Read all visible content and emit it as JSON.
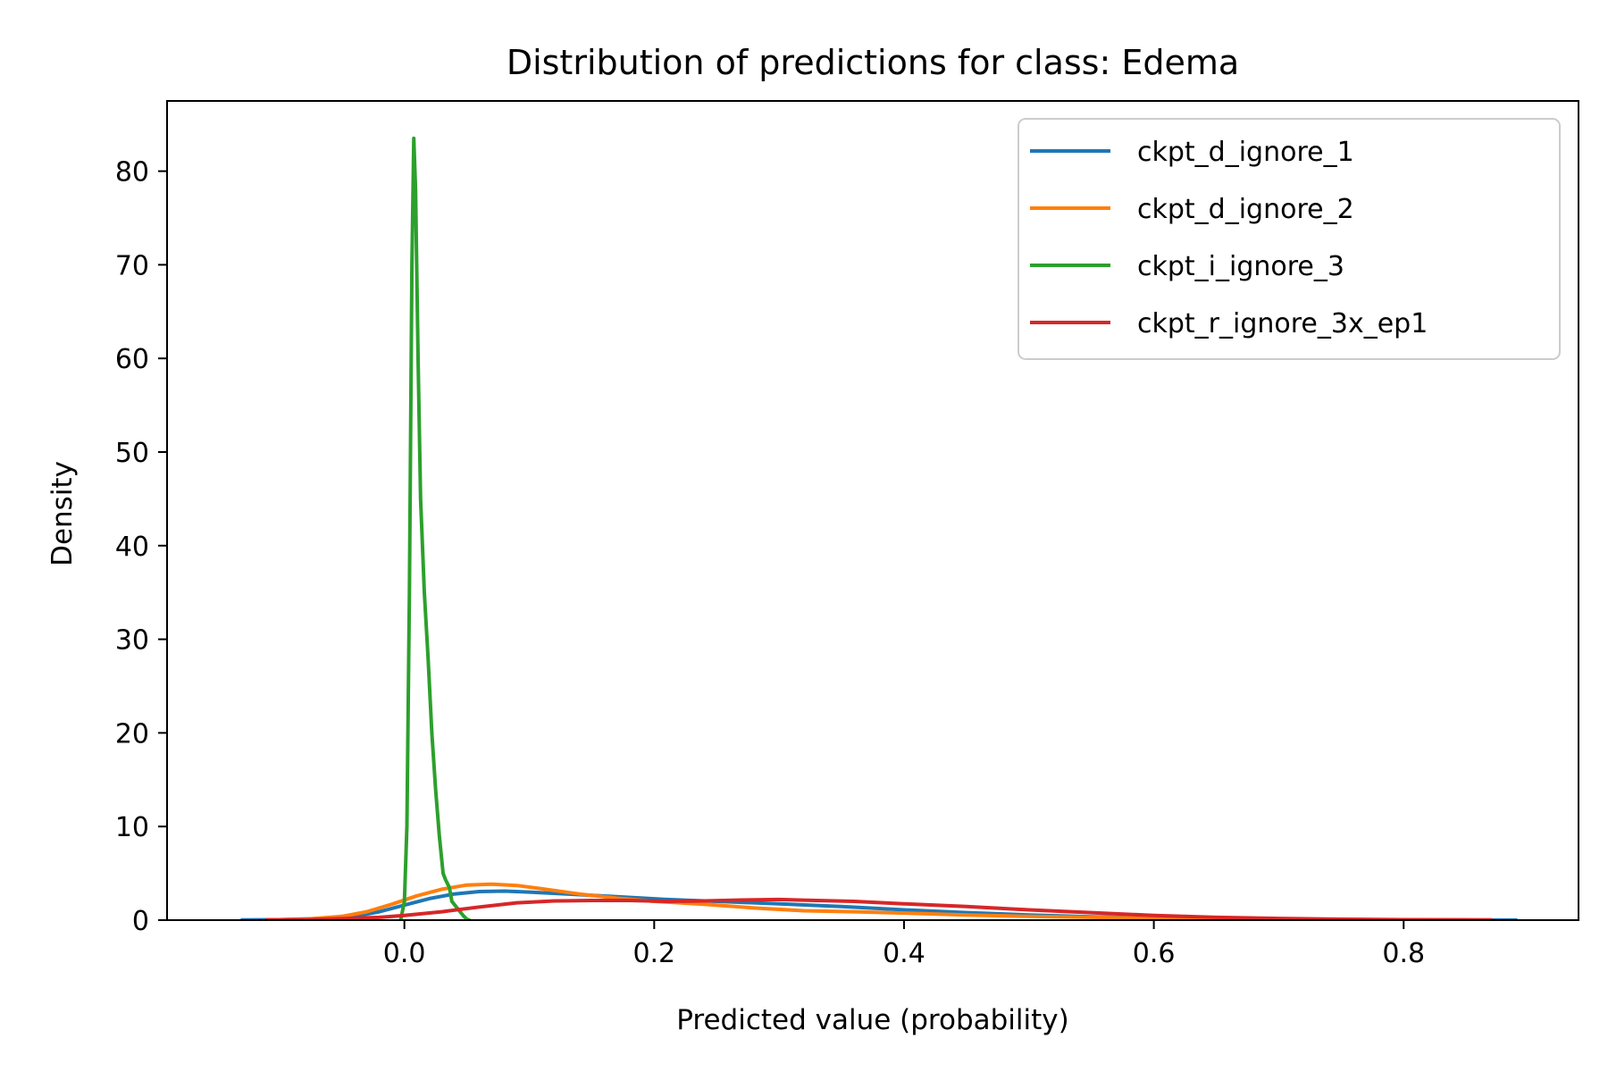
{
  "chart_data": {
    "type": "line",
    "title": "Distribution of predictions for class: Edema",
    "xlabel": "Predicted value (probability)",
    "ylabel": "Density",
    "xlim": [
      -0.19,
      0.94
    ],
    "ylim": [
      0,
      87.5
    ],
    "xticks": [
      0.0,
      0.2,
      0.4,
      0.6,
      0.8
    ],
    "xtick_labels": [
      "0.0",
      "0.2",
      "0.4",
      "0.6",
      "0.8"
    ],
    "yticks": [
      0,
      10,
      20,
      30,
      40,
      50,
      60,
      70,
      80
    ],
    "ytick_labels": [
      "0",
      "10",
      "20",
      "30",
      "40",
      "50",
      "60",
      "70",
      "80"
    ],
    "grid": false,
    "legend_position": "top-right",
    "series": [
      {
        "name": "ckpt_d_ignore_1",
        "color": "#1f77b4",
        "points": [
          [
            -0.13,
            0.02
          ],
          [
            -0.1,
            0.05
          ],
          [
            -0.07,
            0.15
          ],
          [
            -0.04,
            0.4
          ],
          [
            -0.02,
            0.9
          ],
          [
            0.0,
            1.6
          ],
          [
            0.02,
            2.3
          ],
          [
            0.04,
            2.8
          ],
          [
            0.06,
            3.05
          ],
          [
            0.08,
            3.1
          ],
          [
            0.1,
            3.0
          ],
          [
            0.13,
            2.8
          ],
          [
            0.17,
            2.5
          ],
          [
            0.21,
            2.2
          ],
          [
            0.25,
            2.0
          ],
          [
            0.3,
            1.75
          ],
          [
            0.35,
            1.45
          ],
          [
            0.4,
            1.1
          ],
          [
            0.45,
            0.8
          ],
          [
            0.5,
            0.55
          ],
          [
            0.55,
            0.35
          ],
          [
            0.6,
            0.22
          ],
          [
            0.65,
            0.13
          ],
          [
            0.7,
            0.08
          ],
          [
            0.75,
            0.05
          ],
          [
            0.8,
            0.03
          ],
          [
            0.85,
            0.02
          ],
          [
            0.89,
            0.01
          ]
        ]
      },
      {
        "name": "ckpt_d_ignore_2",
        "color": "#ff7f0e",
        "points": [
          [
            -0.11,
            0.03
          ],
          [
            -0.08,
            0.1
          ],
          [
            -0.05,
            0.4
          ],
          [
            -0.03,
            0.9
          ],
          [
            -0.01,
            1.7
          ],
          [
            0.01,
            2.6
          ],
          [
            0.03,
            3.3
          ],
          [
            0.05,
            3.75
          ],
          [
            0.07,
            3.85
          ],
          [
            0.09,
            3.7
          ],
          [
            0.11,
            3.35
          ],
          [
            0.14,
            2.8
          ],
          [
            0.17,
            2.35
          ],
          [
            0.2,
            2.0
          ],
          [
            0.24,
            1.7
          ],
          [
            0.28,
            1.3
          ],
          [
            0.32,
            1.0
          ],
          [
            0.36,
            0.9
          ],
          [
            0.4,
            0.75
          ],
          [
            0.45,
            0.55
          ],
          [
            0.5,
            0.4
          ],
          [
            0.55,
            0.3
          ],
          [
            0.6,
            0.2
          ],
          [
            0.65,
            0.12
          ],
          [
            0.7,
            0.07
          ],
          [
            0.75,
            0.04
          ],
          [
            0.8,
            0.02
          ],
          [
            0.86,
            0.01
          ]
        ]
      },
      {
        "name": "ckpt_i_ignore_3",
        "color": "#2ca02c",
        "points": [
          [
            -0.003,
            0.0
          ],
          [
            0.0,
            2.0
          ],
          [
            0.002,
            10.0
          ],
          [
            0.004,
            35.0
          ],
          [
            0.006,
            70.0
          ],
          [
            0.0075,
            83.5
          ],
          [
            0.009,
            78.0
          ],
          [
            0.011,
            60.0
          ],
          [
            0.013,
            45.0
          ],
          [
            0.016,
            35.0
          ],
          [
            0.019,
            28.0
          ],
          [
            0.022,
            20.0
          ],
          [
            0.025,
            14.0
          ],
          [
            0.028,
            9.0
          ],
          [
            0.031,
            5.0
          ],
          [
            0.033,
            4.3
          ],
          [
            0.036,
            3.5
          ],
          [
            0.038,
            2.0
          ],
          [
            0.041,
            1.5
          ],
          [
            0.044,
            1.0
          ],
          [
            0.047,
            0.5
          ],
          [
            0.05,
            0.1
          ],
          [
            0.052,
            0.0
          ]
        ]
      },
      {
        "name": "ckpt_r_ignore_3x_ep1",
        "color": "#d62728",
        "points": [
          [
            -0.11,
            0.02
          ],
          [
            -0.08,
            0.05
          ],
          [
            -0.05,
            0.15
          ],
          [
            -0.02,
            0.3
          ],
          [
            0.0,
            0.5
          ],
          [
            0.03,
            0.9
          ],
          [
            0.06,
            1.4
          ],
          [
            0.09,
            1.85
          ],
          [
            0.12,
            2.05
          ],
          [
            0.15,
            2.1
          ],
          [
            0.18,
            2.1
          ],
          [
            0.21,
            2.0
          ],
          [
            0.24,
            2.05
          ],
          [
            0.27,
            2.15
          ],
          [
            0.3,
            2.2
          ],
          [
            0.33,
            2.1
          ],
          [
            0.36,
            2.0
          ],
          [
            0.4,
            1.75
          ],
          [
            0.45,
            1.45
          ],
          [
            0.5,
            1.1
          ],
          [
            0.55,
            0.8
          ],
          [
            0.6,
            0.5
          ],
          [
            0.65,
            0.3
          ],
          [
            0.7,
            0.18
          ],
          [
            0.75,
            0.1
          ],
          [
            0.8,
            0.05
          ],
          [
            0.87,
            0.02
          ]
        ]
      }
    ]
  }
}
